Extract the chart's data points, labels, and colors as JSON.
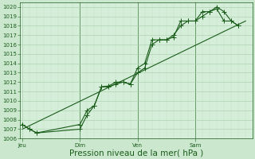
{
  "background_color": "#cbe8cf",
  "plot_bg_color": "#d5eeda",
  "grid_major_color": "#a8cca8",
  "grid_minor_color": "#c0dcc0",
  "line_color": "#1a5c1a",
  "xlabel": "Pression niveau de la mer( hPa )",
  "ylim": [
    1006,
    1020.5
  ],
  "yticks": [
    1006,
    1007,
    1008,
    1009,
    1010,
    1011,
    1012,
    1013,
    1014,
    1015,
    1016,
    1017,
    1018,
    1019,
    1020
  ],
  "xtick_labels": [
    "Jeu",
    "Dim",
    "Ven",
    "Sam"
  ],
  "xtick_positions": [
    0,
    48,
    96,
    144
  ],
  "xlim": [
    -2,
    192
  ],
  "line1_x": [
    0,
    6,
    12,
    48,
    54,
    60,
    66,
    72,
    78,
    84,
    90,
    96,
    102,
    108,
    114,
    120,
    126,
    132,
    138,
    144,
    150,
    156,
    162,
    168,
    174,
    180
  ],
  "line1_y": [
    1007.5,
    1007.0,
    1006.6,
    1007.5,
    1009.0,
    1009.5,
    1011.5,
    1011.6,
    1012.0,
    1012.0,
    1011.8,
    1013.5,
    1014.0,
    1016.5,
    1016.5,
    1016.5,
    1017.0,
    1018.0,
    1018.5,
    1018.5,
    1019.5,
    1019.5,
    1019.8,
    1018.5,
    1018.5,
    1018.0
  ],
  "line2_x": [
    0,
    6,
    12,
    48,
    54,
    60,
    66,
    72,
    78,
    84,
    90,
    96,
    102,
    108,
    114,
    120,
    126,
    132,
    138,
    144,
    150,
    156,
    162,
    168,
    174,
    180
  ],
  "line2_y": [
    1007.5,
    1007.0,
    1006.6,
    1007.0,
    1008.5,
    1009.5,
    1011.5,
    1011.5,
    1011.8,
    1012.0,
    1011.8,
    1013.0,
    1013.5,
    1016.0,
    1016.5,
    1016.5,
    1016.8,
    1018.5,
    1018.5,
    1018.5,
    1019.0,
    1019.5,
    1020.0,
    1019.5,
    1018.5,
    1018.0
  ],
  "trend_x": [
    0,
    186
  ],
  "trend_y": [
    1007.0,
    1018.5
  ],
  "vlines": [
    48,
    96,
    144
  ],
  "marker_size": 2.0,
  "linewidth": 0.8,
  "fontsize_tick": 5,
  "fontsize_xlabel": 7.5
}
